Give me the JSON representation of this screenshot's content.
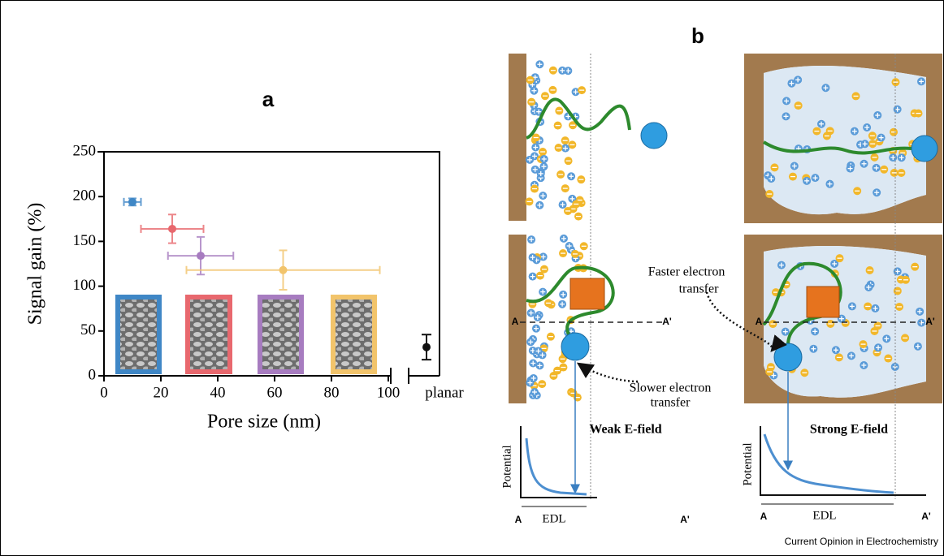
{
  "chart_data": {
    "type": "scatter",
    "panel_label": "a",
    "xlabel": "Pore size (nm)",
    "ylabel": "Signal gain (%)",
    "x": [
      10,
      24,
      34,
      63
    ],
    "values": [
      194,
      164,
      134,
      118
    ],
    "x_errors": [
      3,
      11,
      11.5,
      34
    ],
    "errors": [
      4,
      16,
      21,
      22
    ],
    "colors": [
      "#3f87c6",
      "#e8686e",
      "#a77cc0",
      "#f2c46b"
    ],
    "xlim": [
      0,
      100
    ],
    "ylim": [
      0,
      250
    ],
    "xticks": [
      0,
      20,
      40,
      60,
      80,
      100
    ],
    "yticks": [
      0,
      50,
      100,
      150,
      200,
      250
    ],
    "planar": {
      "label": "planar",
      "value": 32,
      "error": 14,
      "color": "#111111"
    }
  },
  "panel_b": {
    "label": "b",
    "left": {
      "note": [
        "Slower electron",
        "transfer"
      ],
      "field": "Weak E-field",
      "line_start": "A",
      "line_end": "A'",
      "ylabel": "Potential",
      "x_start": "A",
      "span": "EDL",
      "x_end": "A'"
    },
    "right": {
      "note": [
        "Faster electron",
        "transfer"
      ],
      "field": "Strong E-field",
      "line_start": "A",
      "line_end": "A'",
      "ylabel": "Potential",
      "x_start": "A",
      "span": "EDL",
      "x_end": "A'"
    }
  },
  "footer": "Current Opinion in Electrochemistry"
}
